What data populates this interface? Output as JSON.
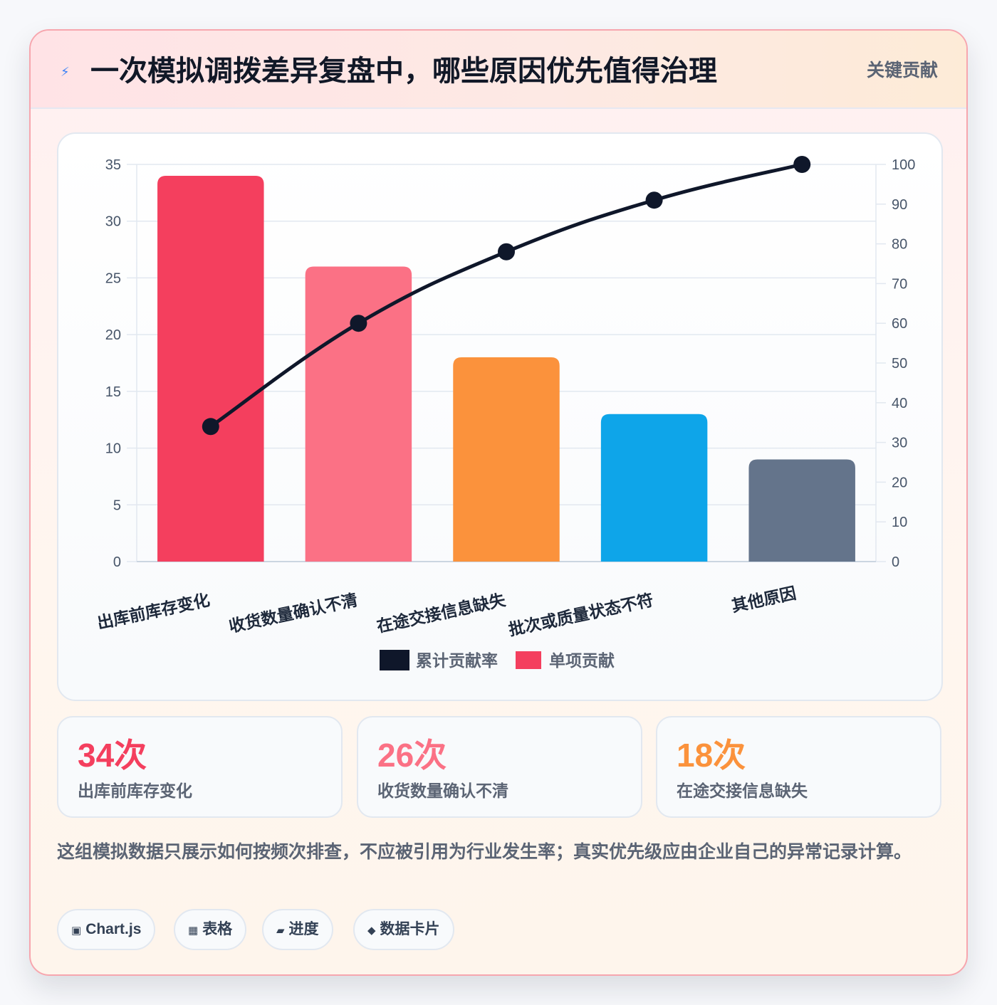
{
  "header": {
    "icon": "lightning-icon",
    "icon_glyph": "⚡",
    "title": "一次模拟调拨差异复盘中，哪些原因优先值得治理",
    "tag": "关键贡献"
  },
  "colors": {
    "bar_1": "#f43f5e",
    "bar_2": "#fb7185",
    "bar_3": "#fb923c",
    "bar_4": "#0ea5e9",
    "bar_5": "#64748b",
    "line": "#0f172a",
    "grid": "#e2e8f0",
    "tick": "#475569",
    "category": "#1e293b"
  },
  "chart_data": {
    "type": "bar",
    "categories": [
      "出库前库存变化",
      "收货数量确认不清",
      "在途交接信息缺失",
      "批次或质量状态不符",
      "其他原因"
    ],
    "series": [
      {
        "name": "累计贡献率",
        "type": "line",
        "axis": "right",
        "values": [
          34,
          60,
          78,
          91,
          100
        ]
      },
      {
        "name": "单项贡献",
        "type": "bar",
        "axis": "left",
        "values": [
          34,
          26,
          18,
          13,
          9
        ]
      }
    ],
    "ylim_left": [
      0,
      35
    ],
    "yticks_left": [
      "0",
      "5",
      "10",
      "15",
      "20",
      "25",
      "30",
      "35"
    ],
    "ylim_right": [
      0,
      100
    ],
    "yticks_right": [
      "0",
      "10",
      "20",
      "30",
      "40",
      "50",
      "60",
      "70",
      "80",
      "90",
      "100"
    ],
    "grid": true,
    "legend_position": "bottom",
    "xlabel": "",
    "ylabel": ""
  },
  "stats": [
    {
      "value": "34次",
      "label": "出库前库存变化",
      "color": "#f43f5e"
    },
    {
      "value": "26次",
      "label": "收货数量确认不清",
      "color": "#fb7185"
    },
    {
      "value": "18次",
      "label": "在途交接信息缺失",
      "color": "#fb923c"
    }
  ],
  "note": "这组模拟数据只展示如何按频次排查，不应被引用为行业发生率；真实优先级应由企业自己的异常记录计算。",
  "chips": [
    {
      "icon": "chart-icon",
      "glyph": "▣",
      "label": "Chart.js"
    },
    {
      "icon": "table-icon",
      "glyph": "▦",
      "label": "表格"
    },
    {
      "icon": "progress-icon",
      "glyph": "▰",
      "label": "进度"
    },
    {
      "icon": "data-card-icon",
      "glyph": "◆",
      "label": "数据卡片"
    }
  ]
}
